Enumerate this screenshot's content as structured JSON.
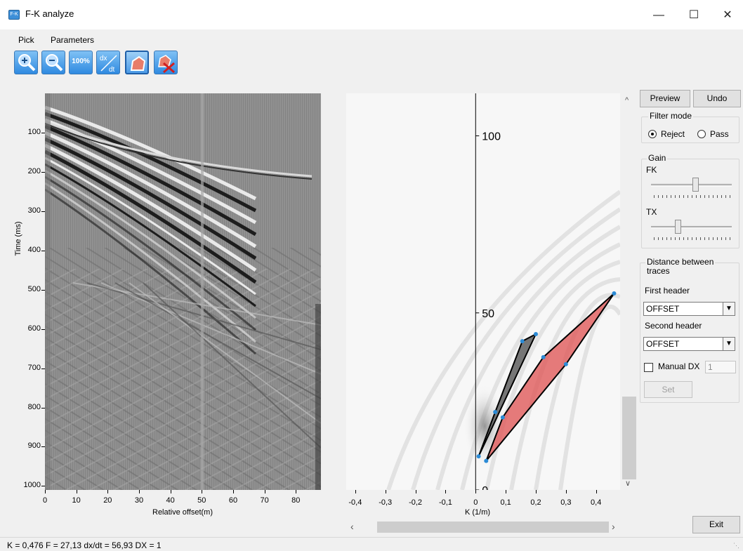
{
  "window": {
    "title": "F-K analyze",
    "icon": "app-icon",
    "minimize": "—",
    "maximize": "☐",
    "close": "✕"
  },
  "menu": [
    {
      "label": "Pick"
    },
    {
      "label": "Parameters"
    }
  ],
  "toolbar": [
    {
      "name": "zoom-in-icon"
    },
    {
      "name": "zoom-out-icon"
    },
    {
      "name": "zoom-100-icon",
      "text": "100%"
    },
    {
      "name": "dx-dt-icon",
      "text_top": "dx",
      "text_bottom": "dt"
    },
    {
      "name": "polygon-pick-icon"
    },
    {
      "name": "delete-polygon-icon"
    }
  ],
  "seismic": {
    "ylabel": "Time (ms)",
    "xlabel": "Relative offset(m)",
    "yticks": [
      "100",
      "200",
      "300",
      "400",
      "500",
      "600",
      "700",
      "800",
      "900",
      "1000"
    ],
    "xticks": [
      "0",
      "10",
      "20",
      "30",
      "40",
      "50",
      "60",
      "70",
      "80"
    ]
  },
  "fk": {
    "xlabel": "K (1/m)",
    "xticks": [
      "-0,4",
      "-0,3",
      "-0,2",
      "-0,1",
      "0",
      "0,1",
      "0,2",
      "0,3",
      "0,4"
    ],
    "yticks": [
      "100",
      "50",
      "0"
    ]
  },
  "chart_data": [
    {
      "type": "heatmap",
      "title": "",
      "xlabel": "Relative offset(m)",
      "ylabel": "Time (ms)",
      "xlim": [
        0,
        88
      ],
      "ylim": [
        1010,
        0
      ],
      "x_ticks": [
        0,
        10,
        20,
        30,
        40,
        50,
        60,
        70,
        80
      ],
      "y_ticks": [
        100,
        200,
        300,
        400,
        500,
        600,
        700,
        800,
        900,
        1000
      ]
    },
    {
      "type": "scatter",
      "title": "",
      "xlabel": "K (1/m)",
      "ylabel": "",
      "xlim": [
        -0.43,
        0.48
      ],
      "ylim": [
        0,
        112
      ],
      "polygons": [
        {
          "name": "grey",
          "color": "#555555",
          "points": [
            [
              0.01,
              9.5
            ],
            [
              0.065,
              22
            ],
            [
              0.155,
              42
            ],
            [
              0.2,
              44
            ]
          ]
        },
        {
          "name": "red",
          "color": "#e05a5a",
          "points": [
            [
              0.035,
              8.2
            ],
            [
              0.09,
              20.5
            ],
            [
              0.225,
              37.5
            ],
            [
              0.46,
              55.5
            ],
            [
              0.3,
              35.5
            ]
          ]
        }
      ]
    }
  ],
  "side": {
    "preview": "Preview",
    "undo": "Undo",
    "filter_mode": {
      "title": "Filter mode",
      "reject": "Reject",
      "pass": "Pass",
      "selected": "Reject"
    },
    "gain": {
      "title": "Gain",
      "fk": "FK",
      "tx": "TX",
      "fk_level": 0.55,
      "tx_level": 0.33
    },
    "distance": {
      "title_line1": "Distance between",
      "title_line2": "traces",
      "first_header_label": "First header",
      "first_header_value": "OFFSET",
      "second_header_label": "Second header",
      "second_header_value": "OFFSET",
      "manual_dx_label": "Manual DX",
      "manual_dx_value": "1",
      "set": "Set"
    },
    "exit": "Exit"
  },
  "status": "K = 0,476 F = 27,13 dx/dt = 56,93  DX = 1",
  "colors": {
    "accent": "#2f8ae0",
    "red_polygon": "#e05a5a",
    "grey_polygon": "#555555",
    "marker": "#2b8bd6"
  }
}
